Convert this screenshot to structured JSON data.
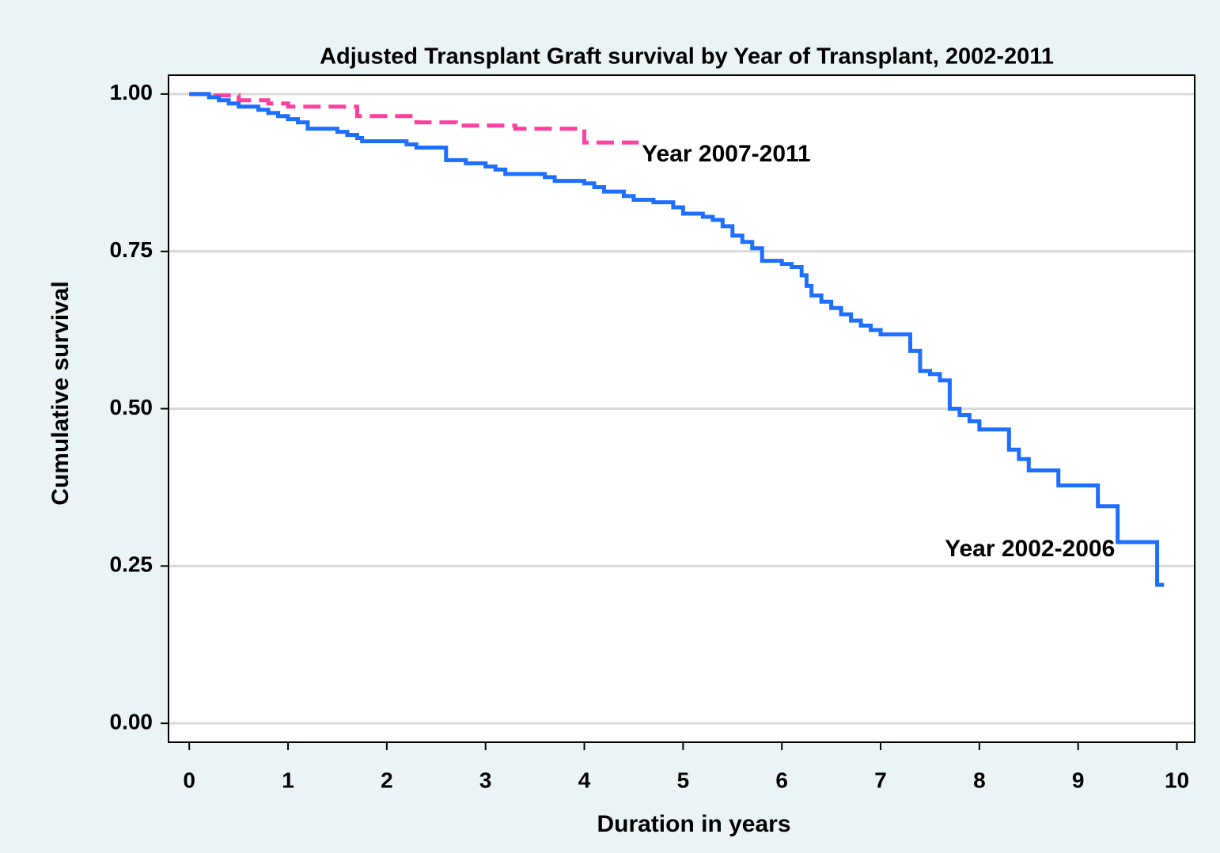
{
  "chart_data": {
    "type": "line",
    "step": "post",
    "title": "Adjusted Transplant Graft survival by Year of Transplant, 2002-2011",
    "xlabel": "Duration in years",
    "ylabel": "Cumulative survival",
    "xlim": [
      -0.21,
      10.18
    ],
    "ylim": [
      -0.03,
      1.03
    ],
    "xticks": [
      0,
      1,
      2,
      3,
      4,
      5,
      6,
      7,
      8,
      9,
      10
    ],
    "yticks": [
      {
        "value": 0,
        "label": "0.00"
      },
      {
        "value": 0.25,
        "label": "0.25"
      },
      {
        "value": 0.5,
        "label": "0.50"
      },
      {
        "value": 0.75,
        "label": "0.75"
      },
      {
        "value": 1,
        "label": "1.00"
      }
    ],
    "grid": true,
    "series": [
      {
        "name": "Year 2007-2011",
        "color": "#ff3fa0",
        "dashed": true,
        "x": [
          0,
          0.2,
          0.5,
          0.8,
          1.0,
          1.7,
          2.3,
          2.7,
          3.3,
          4.0,
          4.55
        ],
        "values": [
          1.0,
          0.998,
          0.99,
          0.985,
          0.98,
          0.965,
          0.955,
          0.95,
          0.945,
          0.923,
          0.923
        ]
      },
      {
        "name": "Year 2002-2006",
        "color": "#1f6fff",
        "dashed": false,
        "x": [
          0,
          0.2,
          0.3,
          0.4,
          0.5,
          0.7,
          0.8,
          0.9,
          1.0,
          1.1,
          1.2,
          1.5,
          1.6,
          1.7,
          1.75,
          2.2,
          2.3,
          2.6,
          2.8,
          3.0,
          3.1,
          3.2,
          3.6,
          3.7,
          4.0,
          4.1,
          4.2,
          4.4,
          4.5,
          4.7,
          4.9,
          5.0,
          5.2,
          5.3,
          5.4,
          5.5,
          5.6,
          5.7,
          5.8,
          6.0,
          6.1,
          6.2,
          6.25,
          6.3,
          6.4,
          6.5,
          6.6,
          6.7,
          6.8,
          6.9,
          7.0,
          7.3,
          7.4,
          7.5,
          7.6,
          7.7,
          7.8,
          7.9,
          8.0,
          8.3,
          8.4,
          8.5,
          8.8,
          9.2,
          9.4,
          9.8,
          9.87
        ],
        "values": [
          1.0,
          0.995,
          0.99,
          0.985,
          0.98,
          0.975,
          0.97,
          0.965,
          0.96,
          0.955,
          0.945,
          0.94,
          0.935,
          0.93,
          0.925,
          0.92,
          0.915,
          0.895,
          0.89,
          0.885,
          0.88,
          0.873,
          0.868,
          0.862,
          0.858,
          0.852,
          0.845,
          0.838,
          0.832,
          0.828,
          0.82,
          0.81,
          0.805,
          0.8,
          0.79,
          0.775,
          0.765,
          0.755,
          0.735,
          0.73,
          0.725,
          0.712,
          0.695,
          0.68,
          0.67,
          0.66,
          0.65,
          0.64,
          0.632,
          0.625,
          0.618,
          0.592,
          0.56,
          0.555,
          0.545,
          0.5,
          0.49,
          0.48,
          0.467,
          0.435,
          0.42,
          0.402,
          0.378,
          0.345,
          0.288,
          0.22,
          0.22
        ]
      }
    ]
  }
}
